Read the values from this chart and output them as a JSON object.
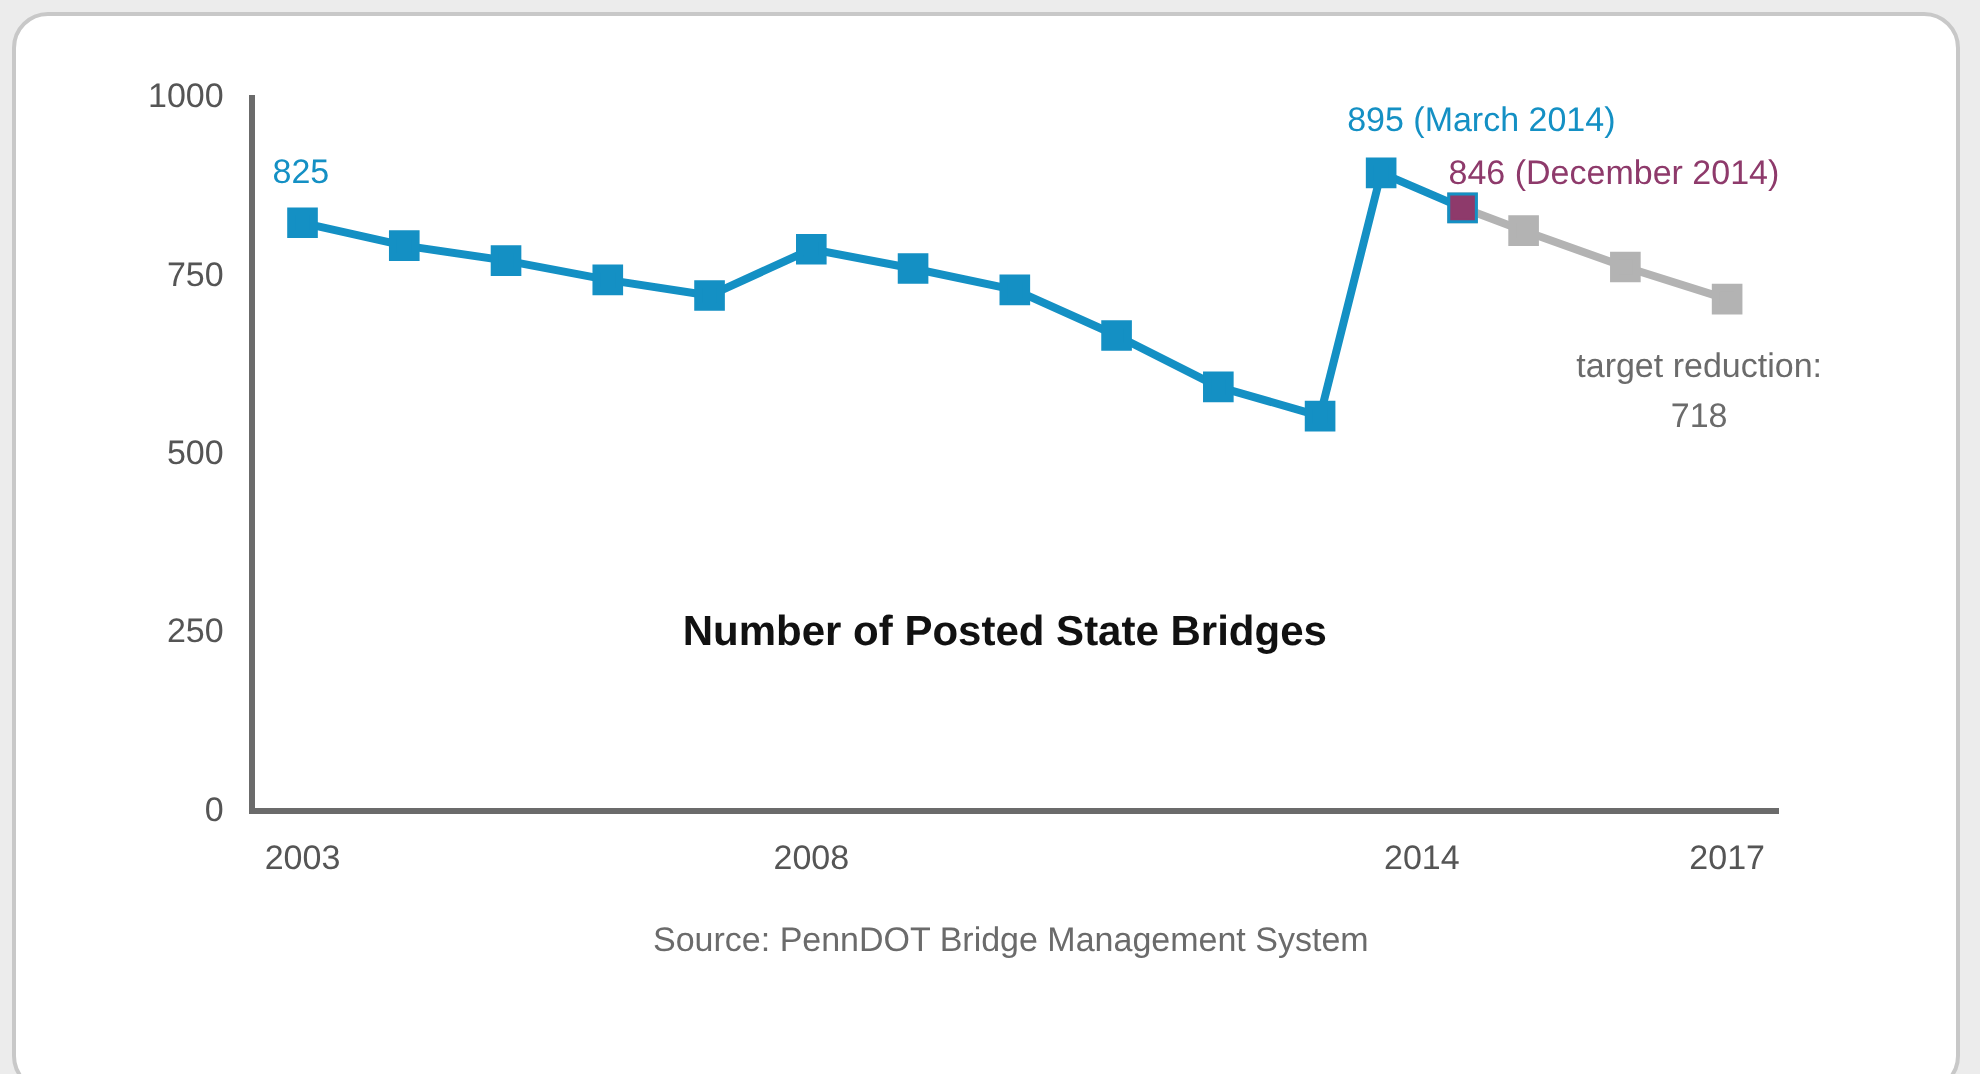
{
  "chart_data": {
    "type": "line",
    "title": "Number of Posted State Bridges",
    "xlim": [
      2002.5,
      2017.5
    ],
    "xticks": [
      2003,
      2008,
      2014,
      2017
    ],
    "ylim": [
      0,
      1000
    ],
    "yticks": [
      0,
      250,
      500,
      750,
      1000
    ],
    "grid": false,
    "legend": false,
    "marker": "square",
    "line_style": "solid",
    "series": [
      {
        "type": "line",
        "color": "#1490c4",
        "x": [
          2003,
          2004,
          2005,
          2006,
          2007,
          2008,
          2009,
          2010,
          2011,
          2012,
          2013,
          2013.6,
          2014.4
        ],
        "values": [
          825,
          793,
          772,
          745,
          723,
          788,
          761,
          731,
          667,
          595,
          554,
          895,
          846
        ]
      },
      {
        "type": "scatter",
        "color": "#8e3a6b",
        "x": [
          2014.4
        ],
        "values": [
          846
        ]
      },
      {
        "type": "line",
        "color": "#b3b3b3",
        "x": [
          2014.4,
          2015,
          2016,
          2017
        ],
        "values": [
          846,
          814,
          763,
          718
        ]
      }
    ],
    "annotations": [
      {
        "text": "825",
        "x": 2003,
        "y": 825
      },
      {
        "text": "895 (March 2014)",
        "x": 2013.6,
        "y": 895
      },
      {
        "text": "846 (December 2014)",
        "x": 2014.4,
        "y": 846
      },
      {
        "text": "target reduction: 718",
        "x": 2017,
        "y": 718
      },
      "Source: PennDOT Bridge Management System"
    ]
  }
}
